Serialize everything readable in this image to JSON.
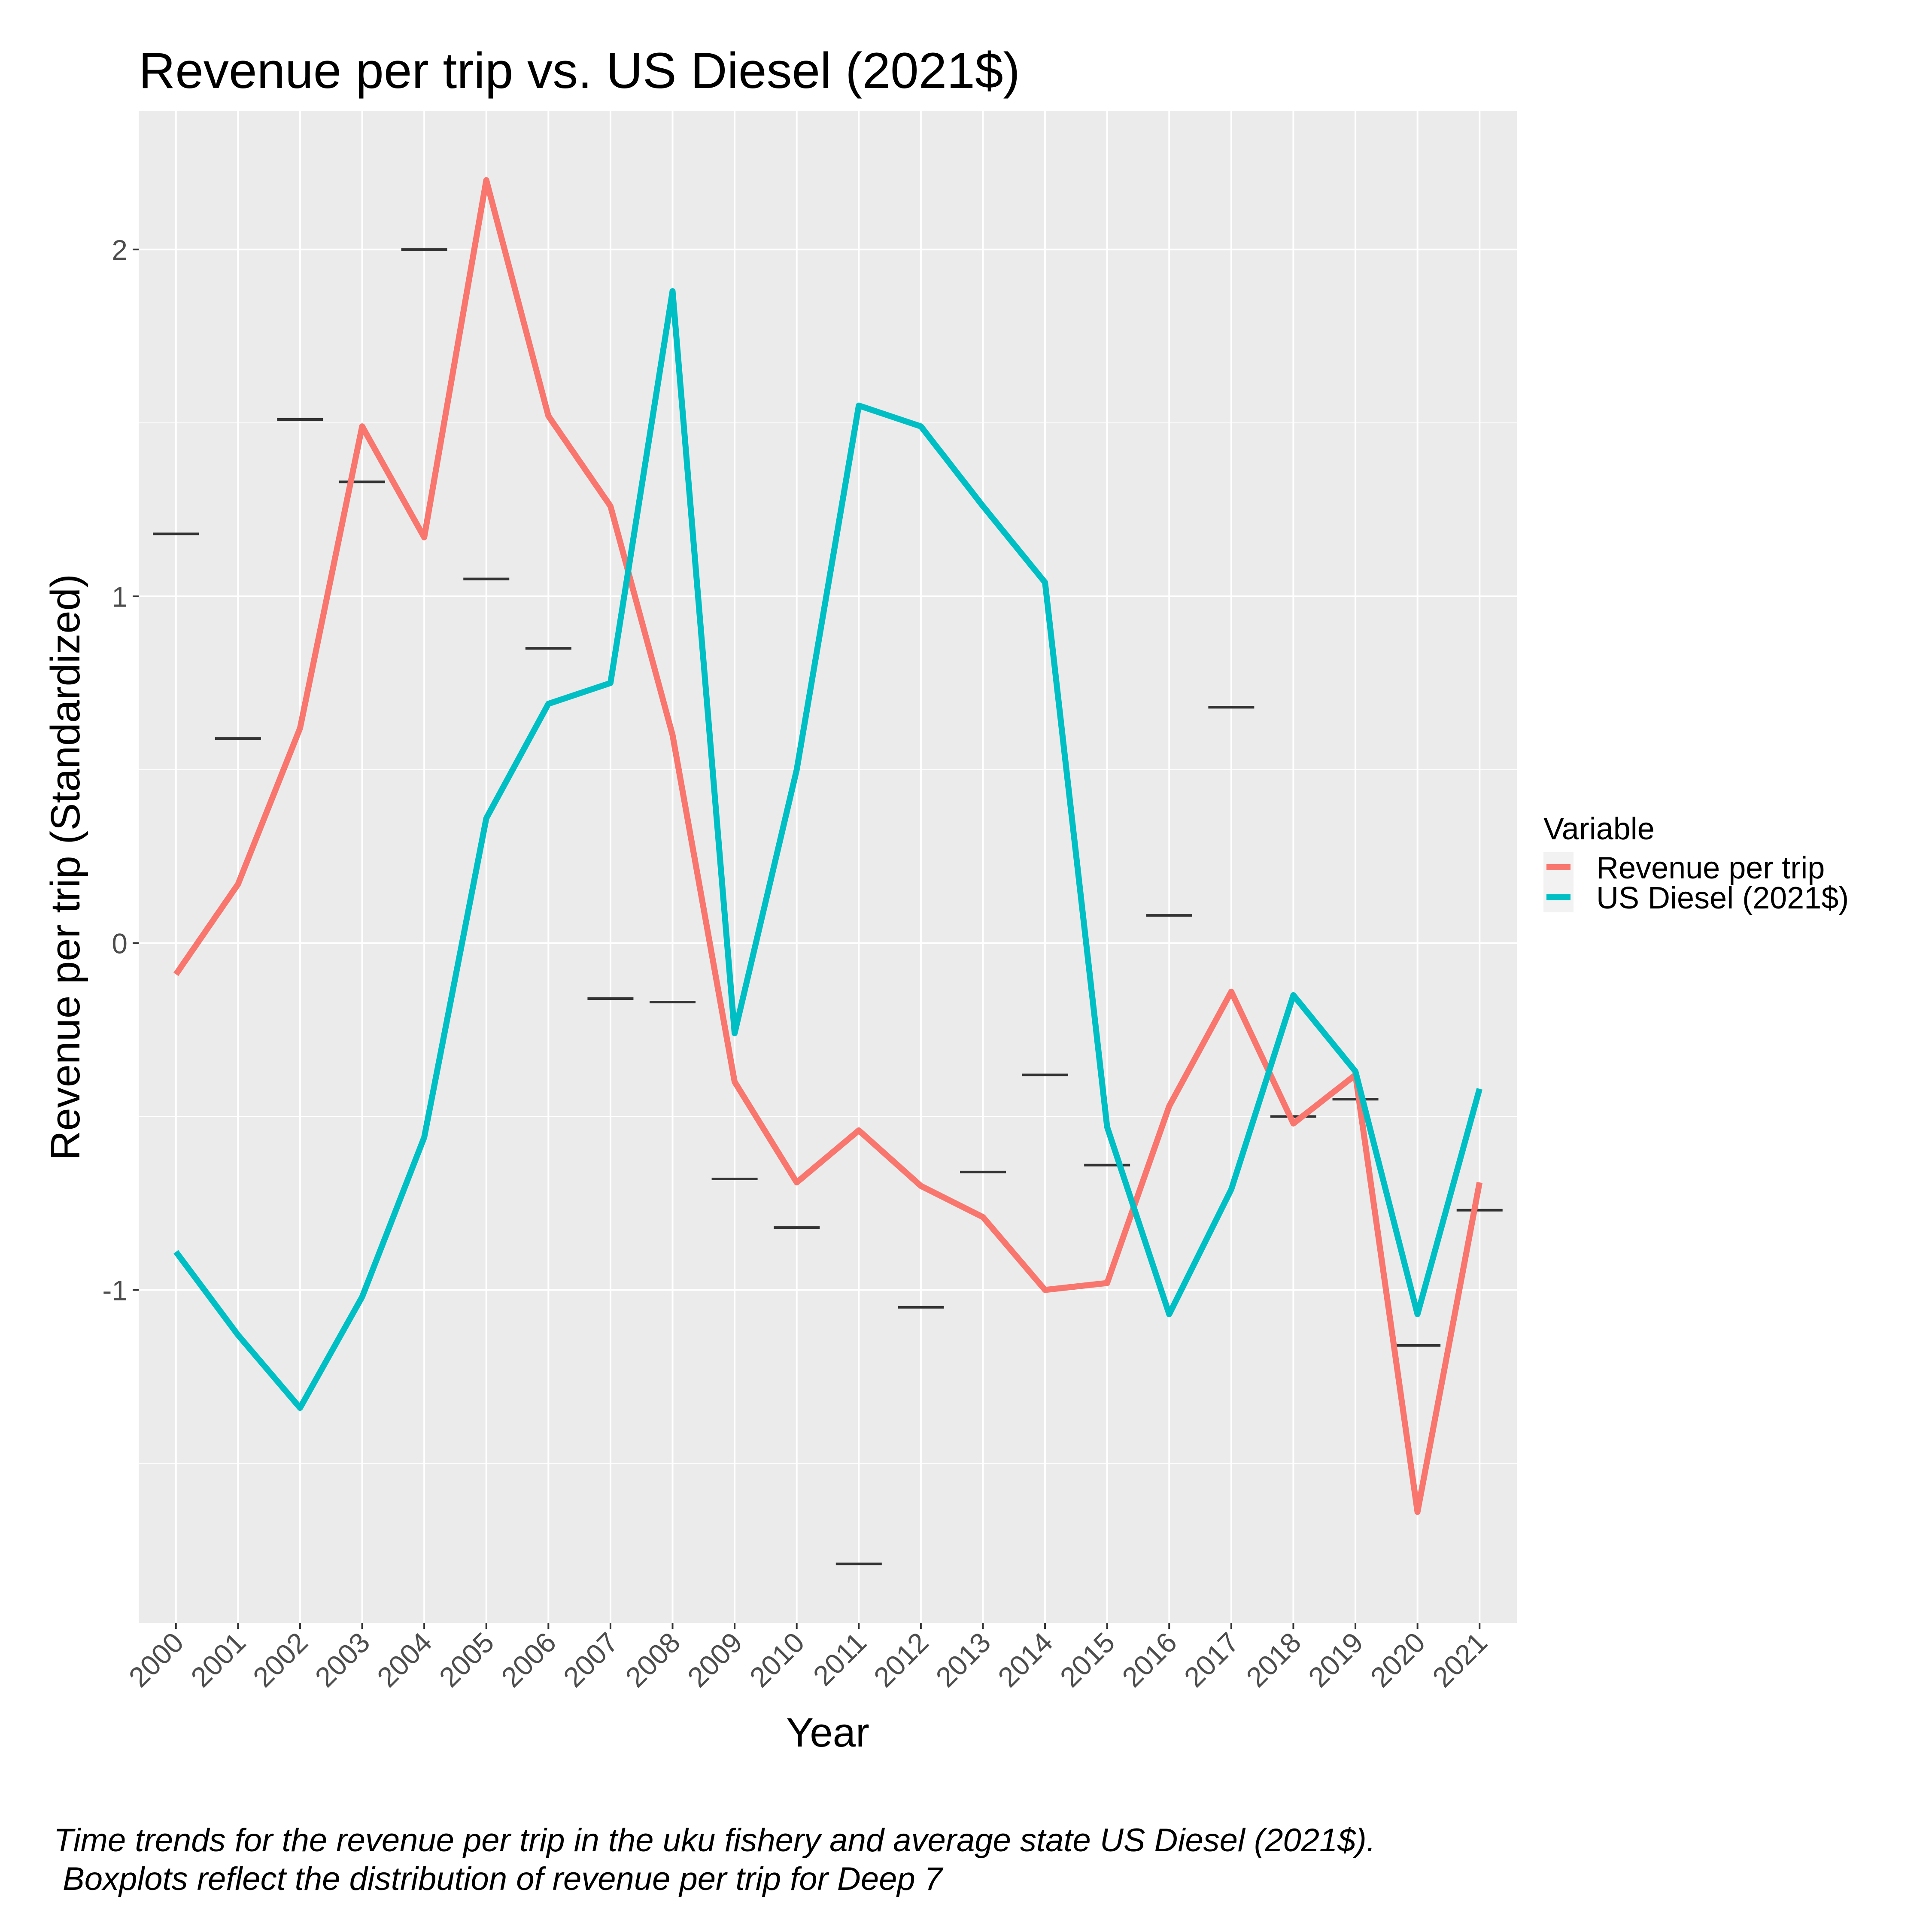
{
  "chart_data": {
    "type": "line",
    "title": "Revenue per trip vs. US Diesel (2021$)",
    "xlabel": "Year",
    "ylabel": "Revenue per trip (Standardized)",
    "x": [
      "2000",
      "2001",
      "2002",
      "2003",
      "2004",
      "2005",
      "2006",
      "2007",
      "2008",
      "2009",
      "2010",
      "2011",
      "2012",
      "2013",
      "2014",
      "2015",
      "2016",
      "2017",
      "2018",
      "2019",
      "2020",
      "2021"
    ],
    "ylim": [
      -1.96,
      2.4
    ],
    "yticks": [
      -1,
      0,
      1,
      2
    ],
    "ytick_labels": [
      "-1",
      "0",
      "1",
      "2"
    ],
    "grid": true,
    "legend": {
      "title": "Variable",
      "position": "right"
    },
    "series": [
      {
        "name": "Revenue per trip",
        "color": "#F8766D",
        "values": [
          -0.09,
          0.17,
          0.62,
          1.49,
          1.17,
          2.2,
          1.52,
          1.26,
          0.6,
          -0.4,
          -0.69,
          -0.54,
          -0.7,
          -0.79,
          -1.0,
          -0.98,
          -0.47,
          -0.14,
          -0.52,
          -0.38,
          -1.64,
          -0.69
        ]
      },
      {
        "name": "US Diesel (2021$)",
        "color": "#00BFC4",
        "values": [
          -0.89,
          -1.13,
          -1.34,
          -1.02,
          -0.56,
          0.36,
          0.69,
          0.75,
          1.88,
          -0.26,
          0.5,
          1.55,
          1.49,
          1.26,
          1.04,
          -0.53,
          -1.07,
          -0.71,
          -0.15,
          -0.37,
          -1.07,
          -0.42
        ]
      }
    ],
    "boxplot_medians": {
      "color": "#333333",
      "values": [
        1.18,
        0.59,
        1.51,
        1.33,
        2.0,
        1.05,
        0.85,
        -0.16,
        -0.17,
        -0.68,
        -0.82,
        -1.79,
        -1.05,
        -0.66,
        -0.38,
        -0.64,
        0.08,
        0.68,
        -0.5,
        -0.45,
        -1.16,
        -0.77
      ]
    },
    "caption_lines": [
      "Time trends for the revenue per trip in the uku fishery and average state US Diesel (2021$).",
      " Boxplots reflect the distribution of revenue per trip for Deep 7"
    ]
  }
}
